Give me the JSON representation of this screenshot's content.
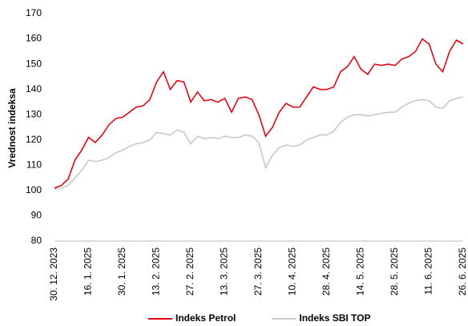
{
  "chart_data": {
    "type": "line",
    "y_label": "Vrednost indeksa",
    "categories": [
      "30. 12. 2023",
      null,
      null,
      null,
      null,
      "16. 1. 2025",
      null,
      null,
      null,
      null,
      "30. 1. 2025",
      null,
      null,
      null,
      null,
      "13. 2. 2025",
      null,
      null,
      null,
      null,
      "27. 2. 2025",
      null,
      null,
      null,
      null,
      "13. 3. 2025",
      null,
      null,
      null,
      null,
      "27. 3. 2025",
      null,
      null,
      null,
      null,
      "10. 4. 2025",
      null,
      null,
      null,
      null,
      "28. 4. 2025",
      null,
      null,
      null,
      null,
      "14. 5. 2025",
      null,
      null,
      null,
      null,
      "28. 5. 2025",
      null,
      null,
      null,
      null,
      "11. 6. 2025",
      null,
      null,
      null,
      null,
      "26. 6. 2025"
    ],
    "series": [
      {
        "name": "Indeks Petrol",
        "color": "#e30613",
        "values": [
          101,
          102,
          104.5,
          112,
          116,
          121,
          119,
          122,
          126,
          128.5,
          129,
          131,
          133,
          133.5,
          136,
          143,
          147,
          140,
          143.5,
          143,
          135,
          139,
          135.5,
          136,
          135,
          136.5,
          131,
          136.5,
          137,
          136,
          130,
          121.5,
          125,
          131,
          134.5,
          133,
          133,
          137,
          141,
          140,
          140,
          141,
          147,
          149,
          153,
          148,
          146,
          150,
          149.5,
          150,
          149.5,
          152,
          153,
          155,
          160,
          158,
          150,
          147,
          155,
          159.5,
          158
        ]
      },
      {
        "name": "Indeks SBI TOP",
        "color": "#c8c8c8",
        "values": [
          100.5,
          101,
          102,
          105,
          108,
          112,
          111.5,
          112,
          113,
          115,
          116,
          117.5,
          118.5,
          119,
          120,
          123,
          122.5,
          122,
          124,
          123,
          118.5,
          121.5,
          120.5,
          121,
          120.5,
          121.5,
          121,
          121,
          122,
          121.5,
          119,
          109,
          114,
          117,
          118,
          117.5,
          118,
          120,
          121,
          122,
          122,
          123.5,
          127,
          129,
          130,
          130,
          129.5,
          130,
          130.5,
          131,
          131,
          133,
          134.5,
          135.5,
          136,
          135.5,
          133,
          132.5,
          135.5,
          136.5,
          137
        ]
      }
    ],
    "ylim": [
      80,
      170
    ],
    "yticks": [
      80,
      90,
      100,
      110,
      120,
      130,
      140,
      150,
      160,
      170
    ],
    "grid": false,
    "legend": "bottom"
  }
}
